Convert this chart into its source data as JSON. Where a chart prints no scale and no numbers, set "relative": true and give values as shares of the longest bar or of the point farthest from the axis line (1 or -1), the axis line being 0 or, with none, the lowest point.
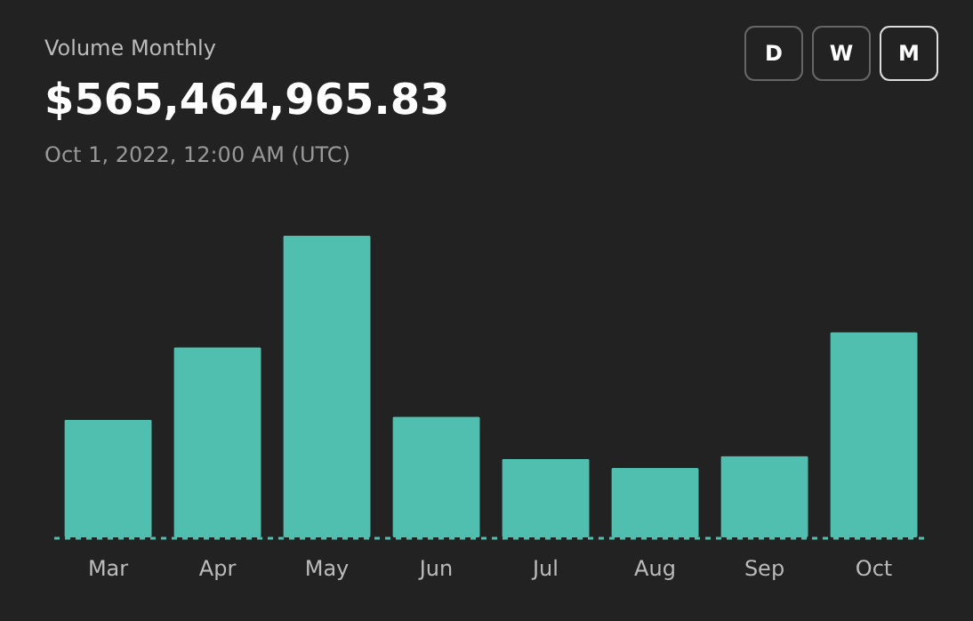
{
  "chart_data": {
    "type": "bar",
    "title": "Volume Monthly",
    "subtitle": "$565,464,965.83",
    "annotations": [
      "Oct 1, 2022, 12:00 AM (UTC)",
      "D",
      "W",
      "M"
    ],
    "categories": [
      "Mar",
      "Apr",
      "May",
      "Jun",
      "Jul",
      "Aug",
      "Sep",
      "Oct"
    ],
    "values": [
      0.39,
      0.63,
      1,
      0.4,
      0.26,
      0.23,
      0.27,
      0.68
    ],
    "color": "#50bfb0",
    "relative": true
  }
}
